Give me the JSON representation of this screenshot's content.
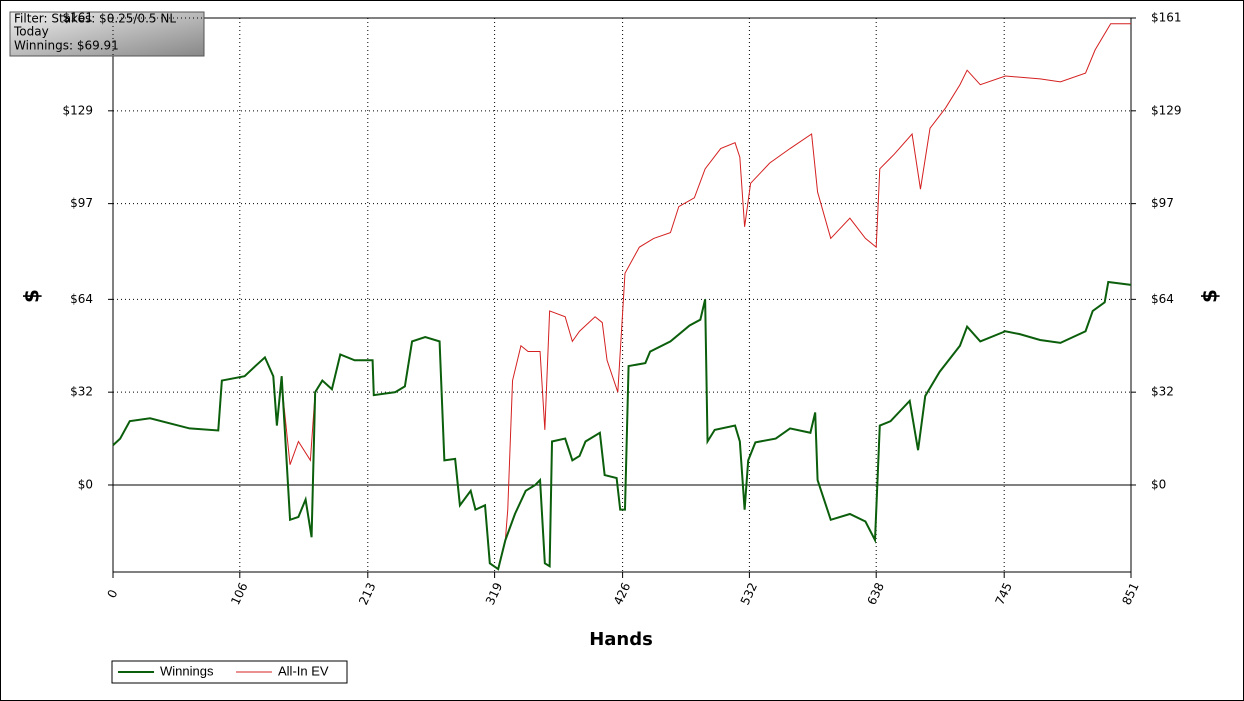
{
  "chart_data": {
    "type": "line",
    "annotation": [
      "Filter: Stakes: $0.25/0.5 NL",
      "Today",
      "Winnings: $69.91"
    ],
    "xlabel": "Hands",
    "ylabel": "$",
    "y2label": "$",
    "xlim": [
      0,
      851
    ],
    "xticks": [
      0,
      106,
      213,
      319,
      426,
      532,
      638,
      745,
      851
    ],
    "ylim": [
      -30,
      161
    ],
    "yticks": [
      {
        "value": 0,
        "label": "$0"
      },
      {
        "value": 32,
        "label": "$32"
      },
      {
        "value": 64,
        "label": "$64"
      },
      {
        "value": 97,
        "label": "$97"
      },
      {
        "value": 129,
        "label": "$129"
      },
      {
        "value": 161,
        "label": "$161"
      }
    ],
    "grid": true,
    "legend": "bottom-left",
    "series": [
      {
        "name": "Winnings",
        "color": "#0b5e0b",
        "x": [
          0,
          6,
          14,
          31,
          64,
          88,
          91,
          110,
          119,
          127,
          134,
          137,
          141,
          148,
          155,
          161,
          166,
          169,
          175,
          183,
          190,
          202,
          217,
          218,
          236,
          244,
          250,
          261,
          273,
          277,
          286,
          290,
          299,
          303,
          311,
          315,
          322,
          328,
          336,
          345,
          353,
          357,
          361,
          365,
          367,
          378,
          384,
          390,
          395,
          407,
          411,
          421,
          424,
          428,
          431,
          445,
          449,
          466,
          482,
          491,
          495,
          497,
          503,
          520,
          524,
          528,
          531,
          537,
          554,
          566,
          583,
          587,
          589,
          600,
          616,
          629,
          637,
          641,
          650,
          666,
          673,
          679,
          691,
          708,
          714,
          725,
          746,
          758,
          775,
          792,
          813,
          819,
          829,
          832,
          851
        ],
        "values": [
          13.7,
          16,
          22,
          23,
          19.5,
          18.8,
          36,
          37.5,
          41,
          44,
          37.5,
          20.5,
          37.5,
          -12,
          -11,
          -5,
          -18,
          32,
          36,
          33,
          45,
          43,
          43,
          31,
          32,
          34,
          49.5,
          51,
          49.5,
          8.5,
          9,
          -7,
          -2,
          -8.5,
          -7,
          -27,
          -29,
          -19,
          -10,
          -2,
          0,
          1.7,
          -27,
          -28,
          15,
          16,
          8.5,
          10,
          15,
          18,
          3.4,
          2.4,
          -8.5,
          -8.5,
          41,
          42,
          46,
          49.5,
          55,
          57,
          64,
          15,
          19,
          20.5,
          15,
          -8.5,
          8.5,
          14.7,
          16,
          19.5,
          18,
          25,
          1.7,
          -12,
          -10,
          -12.6,
          -19,
          20.5,
          22,
          29,
          12,
          30.7,
          39,
          48,
          54.6,
          49.5,
          53,
          52,
          50,
          49,
          53,
          60,
          63,
          70,
          69
        ]
      },
      {
        "name": "All-In EV",
        "color": "#d42020",
        "x": [
          0,
          6,
          14,
          31,
          64,
          88,
          91,
          110,
          119,
          127,
          134,
          137,
          141,
          142,
          148,
          155,
          165,
          169,
          175,
          183,
          190,
          202,
          217,
          218,
          236,
          244,
          250,
          261,
          273,
          277,
          286,
          290,
          299,
          303,
          311,
          315,
          322,
          328,
          330,
          334,
          341,
          347,
          357,
          361,
          365,
          378,
          384,
          390,
          403,
          409,
          413,
          422,
          428,
          440,
          452,
          466,
          473,
          486,
          495,
          508,
          520,
          524,
          528,
          533,
          549,
          566,
          584,
          589,
          600,
          616,
          629,
          638,
          641,
          653,
          668,
          675,
          683,
          696,
          708,
          714,
          725,
          746,
          775,
          792,
          813,
          821,
          834,
          851
        ],
        "values": [
          13.7,
          16,
          22,
          23,
          19.5,
          18.8,
          36,
          37.5,
          41,
          44,
          37.5,
          20.5,
          37.5,
          31,
          7,
          15,
          8.5,
          32,
          36,
          33,
          45,
          43,
          43,
          31,
          32,
          34,
          49.5,
          51,
          49.5,
          8.5,
          9,
          -7,
          -2,
          -8.5,
          -7,
          -27,
          -29,
          -19,
          -8.5,
          36,
          48,
          46,
          46,
          19,
          60,
          58,
          49.5,
          53,
          58,
          56,
          43,
          32,
          73,
          82,
          85,
          87,
          96,
          99,
          109,
          116,
          118,
          113,
          89,
          104,
          111,
          116,
          121,
          101,
          85,
          92,
          85,
          82,
          109,
          114,
          121,
          102,
          123,
          130,
          138,
          143,
          138,
          141,
          140,
          139,
          142,
          150,
          159,
          159
        ]
      }
    ]
  }
}
